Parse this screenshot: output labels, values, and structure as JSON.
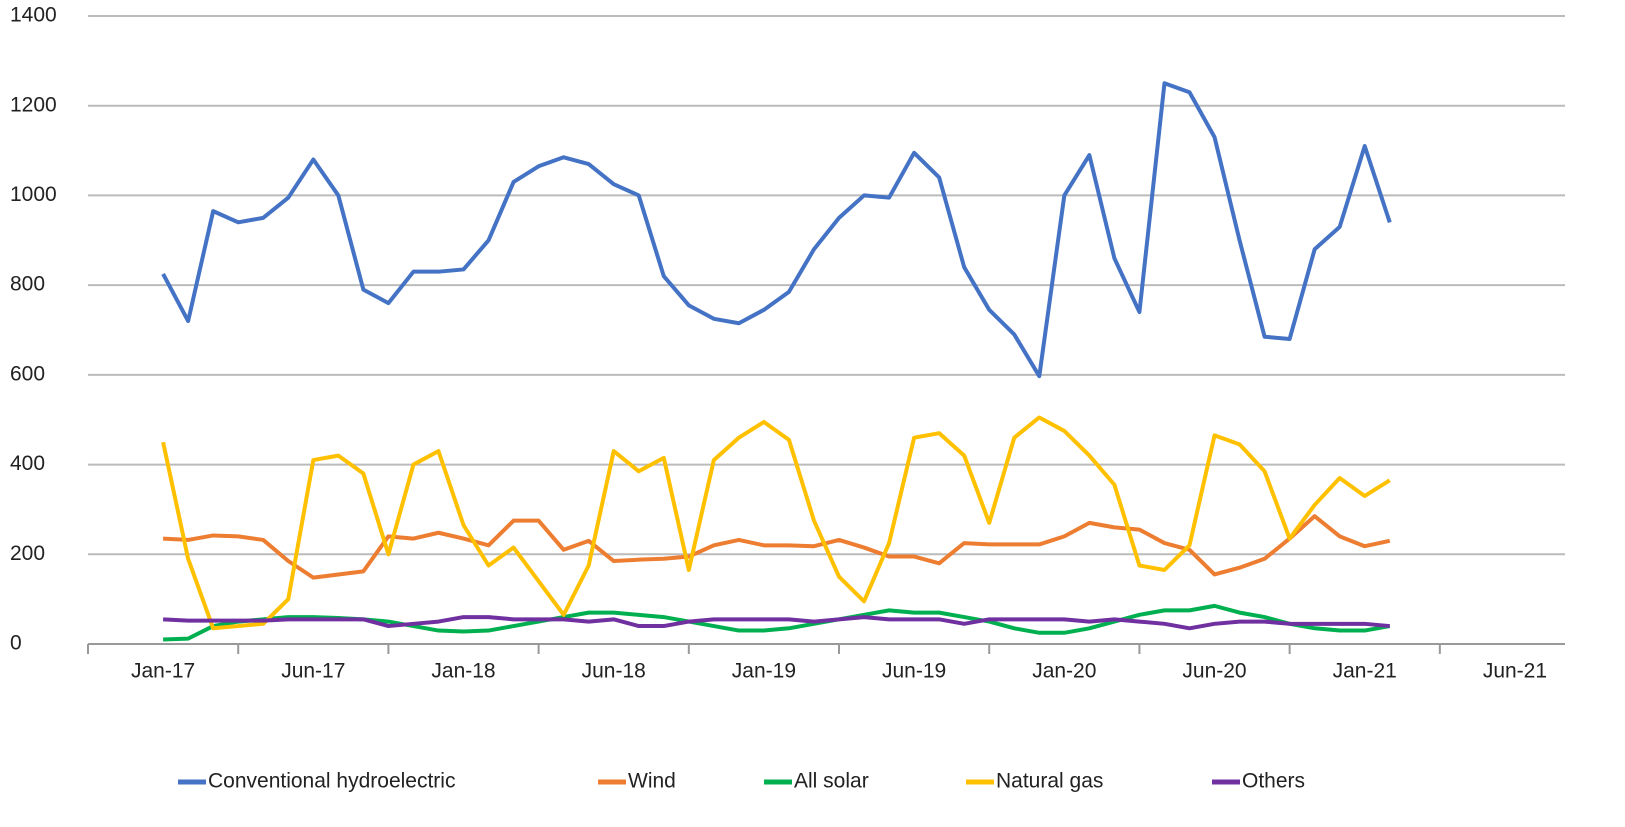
{
  "chart_data": {
    "type": "line",
    "categories": [
      null,
      null,
      null,
      "Jan-17",
      null,
      null,
      null,
      null,
      null,
      "Jun-17",
      null,
      null,
      null,
      null,
      null,
      "Jan-18",
      null,
      null,
      null,
      null,
      null,
      "Jun-18",
      null,
      null,
      null,
      null,
      null,
      "Jan-19",
      null,
      null,
      null,
      null,
      null,
      "Jun-19",
      null,
      null,
      null,
      null,
      null,
      "Jan-20",
      null,
      null,
      null,
      null,
      null,
      "Jun-20",
      null,
      null,
      null,
      null,
      null,
      "Jan-21",
      null,
      null,
      null,
      null,
      null,
      "Jun-21",
      null,
      null
    ],
    "ylim": [
      0,
      1400
    ],
    "yticks": [
      0,
      200,
      400,
      600,
      800,
      1000,
      1200,
      1400
    ],
    "grid": true,
    "legend": "bottom",
    "series": [
      {
        "name": "Conventional hydroelectric",
        "color": "#4472c4",
        "values": [
          null,
          null,
          null,
          825,
          720,
          965,
          940,
          950,
          995,
          1080,
          1000,
          790,
          760,
          830,
          830,
          835,
          900,
          1030,
          1065,
          1085,
          1070,
          1025,
          1000,
          820,
          755,
          725,
          715,
          745,
          785,
          880,
          950,
          1000,
          995,
          1095,
          1040,
          840,
          745,
          690,
          597,
          1000,
          1090,
          860,
          740,
          1250,
          1230,
          1130,
          900,
          685,
          680,
          880,
          930,
          1110,
          940,
          null,
          null,
          null,
          null,
          null,
          null,
          null
        ]
      },
      {
        "name": "Wind",
        "color": "#ed7d31",
        "values": [
          null,
          null,
          null,
          235,
          232,
          242,
          240,
          232,
          185,
          148,
          155,
          162,
          240,
          235,
          248,
          235,
          220,
          275,
          275,
          210,
          230,
          185,
          188,
          190,
          195,
          220,
          232,
          220,
          220,
          218,
          232,
          215,
          195,
          195,
          180,
          225,
          222,
          222,
          222,
          240,
          270,
          260,
          255,
          225,
          210,
          155,
          170,
          190,
          235,
          285,
          240,
          218,
          230,
          null,
          null,
          null,
          null,
          null,
          null,
          null
        ]
      },
      {
        "name": "All solar",
        "color": "#00b050",
        "values": [
          null,
          null,
          null,
          10,
          12,
          40,
          50,
          55,
          60,
          60,
          58,
          55,
          50,
          40,
          30,
          28,
          30,
          40,
          50,
          60,
          70,
          70,
          65,
          60,
          50,
          40,
          30,
          30,
          35,
          45,
          55,
          65,
          75,
          70,
          70,
          60,
          50,
          35,
          25,
          25,
          35,
          50,
          65,
          75,
          75,
          85,
          70,
          60,
          45,
          35,
          30,
          30,
          40,
          null,
          null,
          null,
          null,
          null,
          null,
          null
        ]
      },
      {
        "name": "Natural gas",
        "color": "#ffc000",
        "values": [
          null,
          null,
          null,
          450,
          190,
          35,
          40,
          45,
          100,
          410,
          420,
          380,
          200,
          400,
          430,
          265,
          175,
          215,
          140,
          65,
          175,
          430,
          385,
          415,
          165,
          410,
          460,
          495,
          455,
          275,
          150,
          95,
          225,
          460,
          470,
          420,
          270,
          460,
          505,
          475,
          420,
          355,
          175,
          165,
          220,
          465,
          445,
          385,
          235,
          310,
          370,
          330,
          365,
          null,
          null,
          null,
          null,
          null,
          null,
          null
        ]
      },
      {
        "name": "Others",
        "color": "#7030a0",
        "values": [
          null,
          null,
          null,
          55,
          52,
          52,
          52,
          52,
          55,
          55,
          55,
          55,
          40,
          45,
          50,
          60,
          60,
          55,
          55,
          55,
          50,
          55,
          40,
          40,
          50,
          55,
          55,
          55,
          55,
          50,
          55,
          60,
          55,
          55,
          55,
          45,
          55,
          55,
          55,
          55,
          50,
          55,
          50,
          45,
          35,
          45,
          50,
          50,
          45,
          45,
          45,
          45,
          40,
          null,
          null,
          null,
          null,
          null,
          null,
          null
        ]
      }
    ]
  }
}
